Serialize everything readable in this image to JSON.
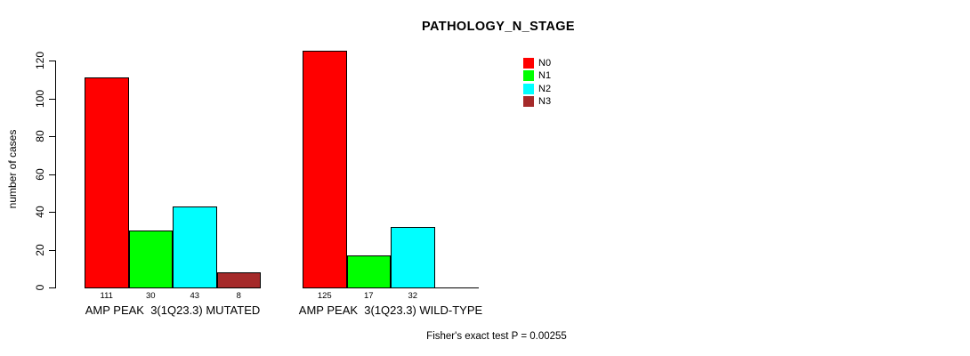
{
  "chart_data": {
    "type": "bar",
    "title": "PATHOLOGY_N_STAGE",
    "ylabel": "number of cases",
    "xlabel": "",
    "ylim": [
      0,
      120
    ],
    "yticks": [
      0,
      20,
      40,
      60,
      80,
      100,
      120
    ],
    "grid": false,
    "legend_position": "top-right",
    "categories": [
      "AMP PEAK  3(1Q23.3) MUTATED",
      "AMP PEAK  3(1Q23.3) WILD-TYPE"
    ],
    "series": [
      {
        "name": "N0",
        "color": "#ff0000",
        "values": [
          111,
          125
        ]
      },
      {
        "name": "N1",
        "color": "#00ff00",
        "values": [
          30,
          17
        ]
      },
      {
        "name": "N2",
        "color": "#00ffff",
        "values": [
          43,
          32
        ]
      },
      {
        "name": "N3",
        "color": "#a52a2a",
        "values": [
          8,
          0
        ]
      }
    ],
    "bar_value_labels_shown_for_zero": false,
    "footnote": "Fisher's exact test P = 0.00255"
  }
}
